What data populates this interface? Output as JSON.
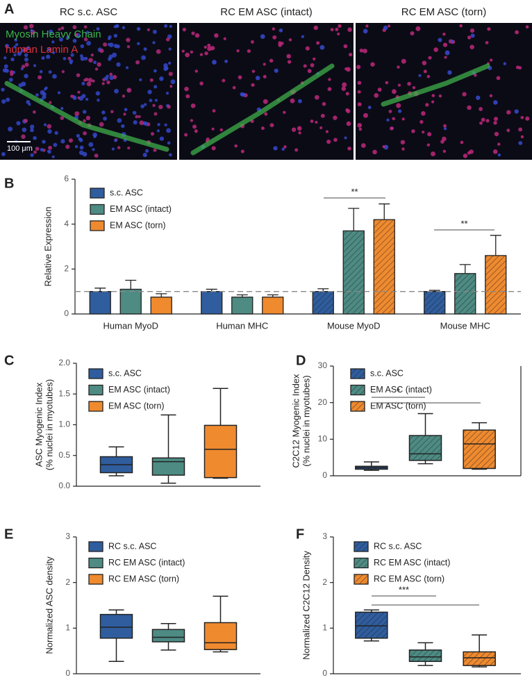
{
  "panel_a": {
    "panel": "A",
    "images": [
      {
        "title": "RC s.c. ASC"
      },
      {
        "title": "RC EM ASC (intact)"
      },
      {
        "title": "RC EM ASC (torn)"
      }
    ],
    "stain_labels": [
      {
        "text": "Myosin Heavy Chain",
        "color": "#3cb44b"
      },
      {
        "text": "human Lamin A",
        "color": "#e0303c"
      }
    ],
    "scale_bar": "100 μm"
  },
  "chart_data": [
    {
      "panel": "B",
      "type": "bar",
      "ylabel": [
        "Relative Expression"
      ],
      "categories": [
        "Human MyoD",
        "Human MHC",
        "Mouse MyoD",
        "Mouse MHC"
      ],
      "series": [
        {
          "name": "s.c. ASC",
          "color": "#2f5d9e",
          "values": [
            1.0,
            1.0,
            1.0,
            1.0
          ],
          "errors": [
            0.15,
            0.1,
            0.12,
            0.05
          ]
        },
        {
          "name": "EM ASC (intact)",
          "color": "#4d8b83",
          "values": [
            1.1,
            0.75,
            3.7,
            1.8
          ],
          "errors": [
            0.4,
            0.1,
            1.0,
            0.4
          ]
        },
        {
          "name": "EM ASC (torn)",
          "color": "#ef8a2f",
          "values": [
            0.75,
            0.75,
            4.2,
            2.6
          ],
          "errors": [
            0.15,
            0.1,
            0.7,
            0.9
          ]
        }
      ],
      "hatched": [
        false,
        false,
        true,
        true
      ],
      "reference_line": 1,
      "ylim": [
        0,
        6
      ],
      "yticks": [
        0,
        2,
        4,
        6
      ],
      "annotations": [
        "**",
        "**"
      ]
    },
    {
      "panel": "C",
      "type": "box",
      "ylabel": [
        "ASC Myogenic Index",
        "(% nuclei in myotubes)"
      ],
      "series": [
        {
          "name": "s.c. ASC",
          "color": "#2f5d9e",
          "min": 0.17,
          "q1": 0.22,
          "median": 0.35,
          "q3": 0.48,
          "max": 0.64
        },
        {
          "name": "EM ASC (intact)",
          "color": "#4d8b83",
          "min": 0.05,
          "q1": 0.18,
          "median": 0.4,
          "q3": 0.46,
          "max": 1.16
        },
        {
          "name": "EM ASC (torn)",
          "color": "#ef8a2f",
          "min": 0.13,
          "q1": 0.14,
          "median": 0.6,
          "q3": 0.99,
          "max": 1.59
        }
      ],
      "hatch": false,
      "ylim": [
        0,
        2
      ],
      "yticks": [
        {
          "value": 0,
          "label": "0.0"
        },
        {
          "value": 0.5,
          "label": "0.5"
        },
        {
          "value": 1,
          "label": "1.0"
        },
        {
          "value": 1.5,
          "label": "1.5"
        },
        {
          "value": 2,
          "label": "2.0"
        }
      ],
      "annotations": []
    },
    {
      "panel": "D",
      "type": "box",
      "ylabel": [
        "C2C12 Myogenic Index",
        "(% nuclei in myotubes)"
      ],
      "series": [
        {
          "name": "s.c. ASC",
          "color": "#2f5d9e",
          "min": 1.5,
          "q1": 1.8,
          "median": 2.2,
          "q3": 2.6,
          "max": 3.8
        },
        {
          "name": "EM ASC (intact)",
          "color": "#4d8b83",
          "min": 3.3,
          "q1": 4.2,
          "median": 6,
          "q3": 11,
          "max": 17
        },
        {
          "name": "EM ASC (torn)",
          "color": "#ef8a2f",
          "min": 1.8,
          "q1": 2,
          "median": 8.7,
          "q3": 12.5,
          "max": 14.5
        }
      ],
      "hatch": true,
      "ylim": [
        0,
        30
      ],
      "yticks": [
        0,
        10,
        20,
        30
      ],
      "annotations": [
        "*"
      ]
    },
    {
      "panel": "E",
      "type": "box",
      "ylabel": [
        "Normalized ASC density"
      ],
      "series": [
        {
          "name": "RC s.c. ASC",
          "color": "#2f5d9e",
          "min": 0.27,
          "q1": 0.78,
          "median": 1.02,
          "q3": 1.3,
          "max": 1.4
        },
        {
          "name": "RC EM ASC (intact)",
          "color": "#4d8b83",
          "min": 0.52,
          "q1": 0.7,
          "median": 0.8,
          "q3": 0.97,
          "max": 1.1
        },
        {
          "name": "RC EM ASC (torn)",
          "color": "#ef8a2f",
          "min": 0.48,
          "q1": 0.53,
          "median": 0.68,
          "q3": 1.12,
          "max": 1.7
        }
      ],
      "hatch": false,
      "ylim": [
        0,
        3
      ],
      "yticks": [
        0,
        1,
        2,
        3
      ],
      "annotations": []
    },
    {
      "panel": "F",
      "type": "box",
      "ylabel": [
        "Normalized C2C12 Density"
      ],
      "series": [
        {
          "name": "RC s.c. ASC",
          "color": "#2f5d9e",
          "min": 0.72,
          "q1": 0.78,
          "median": 1.05,
          "q3": 1.35,
          "max": 1.4
        },
        {
          "name": "RC EM ASC (intact)",
          "color": "#4d8b83",
          "min": 0.18,
          "q1": 0.27,
          "median": 0.37,
          "q3": 0.52,
          "max": 0.68
        },
        {
          "name": "RC EM ASC (torn)",
          "color": "#ef8a2f",
          "min": 0.15,
          "q1": 0.18,
          "median": 0.35,
          "q3": 0.48,
          "max": 0.85
        }
      ],
      "hatch": true,
      "ylim": [
        0,
        3
      ],
      "yticks": [
        0,
        1,
        2,
        3
      ],
      "annotations": [
        "***"
      ]
    }
  ]
}
